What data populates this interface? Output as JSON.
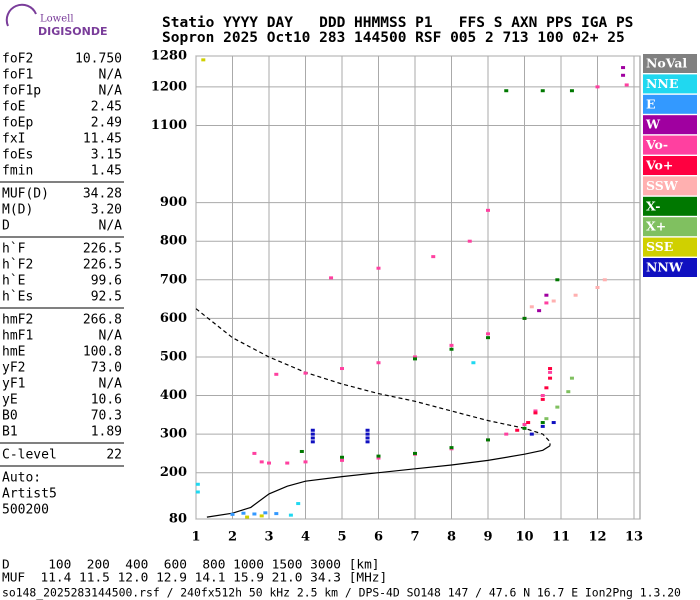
{
  "logo": {
    "line1": "Lowell",
    "line2": "DIGISONDE"
  },
  "header": {
    "row1": "Statio YYYY DAY   DDD HHMMSS P1   FFS S AXN PPS IGA PS",
    "row2": "Sopron 2025 Oct10 283 144500 RSF 005 2 713 100 02+ 25"
  },
  "parameters": [
    [
      [
        "foF2",
        "10.750"
      ],
      [
        "foF1",
        "N/A"
      ],
      [
        "foF1p",
        "N/A"
      ],
      [
        "foE",
        "2.45"
      ],
      [
        "foEp",
        "2.49"
      ],
      [
        "fxI",
        "11.45"
      ],
      [
        "foEs",
        "3.15"
      ],
      [
        "fmin",
        "1.45"
      ]
    ],
    [
      [
        "MUF(D)",
        "34.28"
      ],
      [
        "M(D)",
        "3.20"
      ],
      [
        "D",
        "N/A"
      ]
    ],
    [
      [
        "h`F",
        "226.5"
      ],
      [
        "h`F2",
        "226.5"
      ],
      [
        "h`E",
        "99.6"
      ],
      [
        "h`Es",
        "92.5"
      ]
    ],
    [
      [
        "hmF2",
        "266.8"
      ],
      [
        "hmF1",
        "N/A"
      ],
      [
        "hmE",
        "100.8"
      ],
      [
        "yF2",
        "73.0"
      ],
      [
        "yF1",
        "N/A"
      ],
      [
        "yE",
        "10.6"
      ],
      [
        "B0",
        "70.3"
      ],
      [
        "B1",
        "1.89"
      ]
    ],
    [
      [
        "C-level",
        "22"
      ]
    ]
  ],
  "auto": [
    "Auto:",
    "Artist5",
    "500200"
  ],
  "chart_data": {
    "type": "scatter",
    "xlim": [
      1,
      13
    ],
    "xticks": [
      1,
      2,
      3,
      4,
      5,
      6,
      7,
      8,
      9,
      10,
      11,
      12,
      13
    ],
    "ylim": [
      80,
      1280
    ],
    "yticks": [
      80,
      200,
      300,
      400,
      500,
      600,
      700,
      800,
      900,
      1100,
      1200,
      1280
    ],
    "grid": true,
    "series": [
      {
        "name": "NoVal",
        "color": "#808080",
        "x": [],
        "values": []
      },
      {
        "name": "NNE",
        "color": "#20d8f0",
        "x": [
          1.05,
          1.05,
          3.6,
          3.8,
          8.6
        ],
        "values": [
          150,
          170,
          90,
          120,
          485
        ]
      },
      {
        "name": "E",
        "color": "#3399ff",
        "x": [
          2.0,
          2.3,
          2.6,
          2.9,
          3.2
        ],
        "values": [
          92,
          95,
          93,
          96,
          94
        ]
      },
      {
        "name": "W",
        "color": "#a000a0",
        "x": [
          10.4,
          10.6,
          12.7,
          12.7
        ],
        "values": [
          620,
          660,
          1230,
          1250
        ]
      },
      {
        "name": "Vo-",
        "color": "#ff40a0",
        "x": [
          2.6,
          2.8,
          3.0,
          3.5,
          4.0,
          5.0,
          6.0,
          7.0,
          8.0,
          9.0,
          9.5,
          10.0,
          10.3,
          10.5,
          10.7,
          3.2,
          4.0,
          5.0,
          6.0,
          7.0,
          8.0,
          9.0,
          10.0,
          10.6,
          4.7,
          6.0,
          7.5,
          8.5,
          9.0,
          12.0,
          12.8
        ],
        "values": [
          250,
          228,
          225,
          225,
          228,
          232,
          238,
          248,
          262,
          285,
          300,
          325,
          360,
          400,
          460,
          455,
          458,
          470,
          485,
          500,
          530,
          560,
          600,
          640,
          705,
          730,
          760,
          800,
          880,
          1200,
          1205
        ]
      },
      {
        "name": "Vo+",
        "color": "#ff0040",
        "x": [
          9.8,
          10.1,
          10.3,
          10.5,
          10.6,
          10.7,
          10.7
        ],
        "values": [
          310,
          330,
          355,
          390,
          420,
          445,
          470
        ]
      },
      {
        "name": "SSW",
        "color": "#ffb0b0",
        "x": [
          10.2,
          10.8,
          11.4,
          12.0,
          12.2
        ],
        "values": [
          630,
          645,
          660,
          680,
          700
        ]
      },
      {
        "name": "X-",
        "color": "#007800",
        "x": [
          3.9,
          5.0,
          6.0,
          7.0,
          8.0,
          9.0,
          10.0,
          10.5,
          7.0,
          8.0,
          9.0,
          10.0,
          10.9,
          9.5,
          10.5,
          11.3
        ],
        "values": [
          255,
          240,
          243,
          250,
          265,
          285,
          315,
          330,
          495,
          520,
          550,
          600,
          700,
          1190,
          1190,
          1190
        ]
      },
      {
        "name": "X+",
        "color": "#80c060",
        "x": [
          10.6,
          10.9,
          11.2,
          11.3
        ],
        "values": [
          340,
          370,
          410,
          445
        ]
      },
      {
        "name": "SSE",
        "color": "#d0d000",
        "x": [
          1.2,
          2.4,
          2.8
        ],
        "values": [
          1270,
          85,
          88
        ]
      },
      {
        "name": "NNW",
        "color": "#1010c0",
        "x": [
          4.2,
          5.7,
          4.2,
          5.7,
          4.2,
          5.7,
          4.2,
          5.7,
          10.2,
          10.5,
          10.8
        ],
        "values": [
          310,
          310,
          300,
          300,
          290,
          290,
          280,
          280,
          300,
          320,
          330
        ]
      }
    ],
    "lines": [
      {
        "color": "#000000",
        "dashed": false,
        "x": [
          1.3,
          2.0,
          2.5,
          3.0,
          3.5,
          4.0,
          5.0,
          6.0,
          7.0,
          8.0,
          9.0,
          10.0,
          10.5,
          10.7
        ],
        "values": [
          85,
          95,
          110,
          145,
          165,
          178,
          190,
          200,
          210,
          220,
          232,
          248,
          258,
          270
        ]
      },
      {
        "color": "#000000",
        "dashed": true,
        "x": [
          1.0,
          2.0,
          3.0,
          4.0,
          5.0,
          6.0,
          7.0,
          8.0,
          9.0,
          10.0,
          10.5,
          10.7,
          10.7
        ],
        "values": [
          625,
          550,
          500,
          460,
          430,
          405,
          385,
          360,
          335,
          315,
          300,
          280,
          270
        ]
      }
    ]
  },
  "footer": {
    "distance": "D     100  200  400  600  800 1000 1500 3000 [km]",
    "muf": "MUF  11.4 11.5 12.0 12.9 14.1 15.9 21.0 34.3 [MHz]",
    "file": "so148_2025283144500.rsf / 240fx512h 50 kHz 2.5 km / DPS-4D SO148 147 / 47.6 N 16.7 E Ion2Png 1.3.20"
  }
}
